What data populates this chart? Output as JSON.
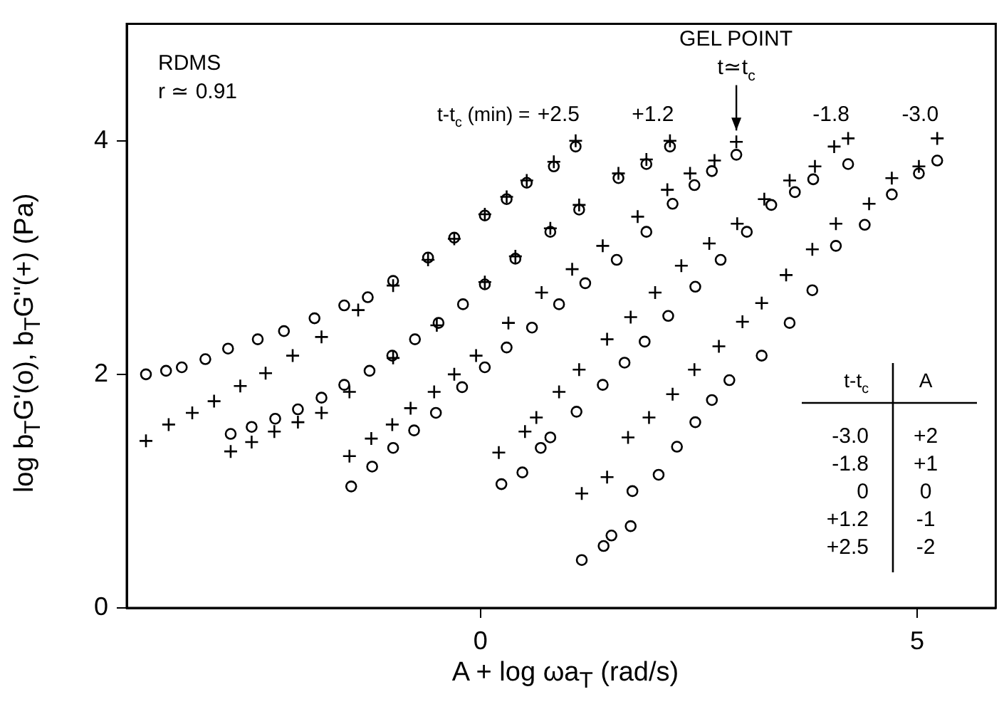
{
  "chart_data": {
    "type": "scatter",
    "xlabel": "A + log ωa$_{T}$ (rad/s)",
    "ylabel": "log b$_{T}$G'(o),  b$_{T}$G''(+)  (Pa)",
    "xlim": [
      -4.05,
      5.9
    ],
    "xticks": [
      0,
      5
    ],
    "ylim": [
      0,
      5
    ],
    "yticks": [
      0,
      2,
      4
    ],
    "grid": false,
    "legend": false,
    "annotations": [
      "RDMS",
      "r ≃ 0.91",
      "t-t$_{c}$ (min) =",
      {
        "text": "GEL POINT\nt≃t$_{c}$",
        "x": 2.93,
        "y": 3.99
      },
      "t-t$_{c}$",
      "A",
      "-3.0",
      "+2",
      "-1.8",
      "+1",
      "0",
      "0",
      "+1.2",
      "-1",
      "+2.5",
      "-2"
    ],
    "series": [
      {
        "name": "+2.5",
        "color": "#000000",
        "marker": "circle",
        "x": [
          -3.83,
          -3.6,
          -3.42,
          -3.15,
          -2.89,
          -2.55,
          -2.25,
          -1.9,
          -1.56,
          -1.29,
          -1.0,
          -0.6,
          -0.3,
          0.05,
          0.3,
          0.53,
          0.84,
          1.09
        ],
        "values": [
          2.0,
          2.03,
          2.06,
          2.13,
          2.22,
          2.3,
          2.37,
          2.48,
          2.59,
          2.66,
          2.8,
          3.0,
          3.17,
          3.36,
          3.5,
          3.64,
          3.78,
          3.95
        ]
      },
      {
        "color": "#000000",
        "marker": "cross",
        "x": [
          -3.83,
          -3.57,
          -3.3,
          -3.05,
          -2.75,
          -2.46,
          -2.15,
          -1.82,
          -1.4,
          -1.0,
          -0.6,
          -0.3,
          0.05,
          0.3,
          0.53,
          0.84,
          1.09
        ],
        "values": [
          1.43,
          1.57,
          1.67,
          1.77,
          1.9,
          2.01,
          2.16,
          2.32,
          2.55,
          2.76,
          2.98,
          3.16,
          3.37,
          3.52,
          3.66,
          3.82,
          4.0
        ]
      },
      {
        "name": "+1.2",
        "color": "#000000",
        "marker": "circle",
        "x": [
          -2.86,
          -2.62,
          -2.35,
          -2.09,
          -1.82,
          -1.56,
          -1.27,
          -1.01,
          -0.75,
          -0.48,
          -0.2,
          0.05,
          0.4,
          0.8,
          1.13,
          1.58,
          1.9,
          2.17
        ],
        "values": [
          1.49,
          1.55,
          1.62,
          1.7,
          1.8,
          1.91,
          2.03,
          2.16,
          2.3,
          2.44,
          2.6,
          2.77,
          2.99,
          3.22,
          3.41,
          3.68,
          3.8,
          3.95
        ]
      },
      {
        "color": "#000000",
        "marker": "cross",
        "x": [
          -2.86,
          -2.62,
          -2.36,
          -2.09,
          -1.82,
          -1.5,
          -1.0,
          -0.5,
          0.05,
          0.4,
          0.8,
          1.13,
          1.58,
          1.9,
          2.17
        ],
        "values": [
          1.34,
          1.42,
          1.51,
          1.59,
          1.67,
          1.85,
          2.14,
          2.42,
          2.79,
          3.01,
          3.25,
          3.45,
          3.72,
          3.84,
          4.0
        ]
      },
      {
        "color": "#000000",
        "marker": "circle",
        "x": [
          -1.48,
          -1.24,
          -1.0,
          -0.76,
          -0.51,
          -0.21,
          0.05,
          0.3,
          0.59,
          0.9,
          1.2,
          1.56,
          1.9,
          2.2,
          2.45,
          2.65,
          2.93
        ],
        "values": [
          1.04,
          1.21,
          1.37,
          1.52,
          1.67,
          1.89,
          2.06,
          2.23,
          2.4,
          2.6,
          2.78,
          2.98,
          3.22,
          3.46,
          3.62,
          3.74,
          3.88
        ]
      },
      {
        "color": "#000000",
        "marker": "cross",
        "x": [
          -1.5,
          -1.25,
          -1.01,
          -0.8,
          -0.53,
          -0.3,
          -0.05,
          0.32,
          0.7,
          1.05,
          1.4,
          1.8,
          2.14,
          2.4,
          2.68,
          2.93
        ],
        "values": [
          1.3,
          1.45,
          1.57,
          1.71,
          1.85,
          2.0,
          2.16,
          2.44,
          2.7,
          2.9,
          3.1,
          3.35,
          3.58,
          3.72,
          3.83,
          3.99
        ]
      },
      {
        "name": "-1.8",
        "color": "#000000",
        "marker": "circle",
        "x": [
          0.24,
          0.48,
          0.69,
          0.8,
          1.1,
          1.4,
          1.65,
          1.88,
          2.15,
          2.46,
          2.75,
          3.05,
          3.33,
          3.6,
          3.81,
          4.21
        ],
        "values": [
          1.06,
          1.16,
          1.37,
          1.46,
          1.68,
          1.91,
          2.1,
          2.28,
          2.5,
          2.75,
          2.98,
          3.22,
          3.45,
          3.56,
          3.67,
          3.8
        ]
      },
      {
        "color": "#000000",
        "marker": "cross",
        "x": [
          0.21,
          0.51,
          0.64,
          0.9,
          1.13,
          1.45,
          1.72,
          2.0,
          2.3,
          2.62,
          2.94,
          3.25,
          3.54,
          3.83,
          4.05,
          4.21
        ],
        "values": [
          1.33,
          1.51,
          1.63,
          1.85,
          2.04,
          2.3,
          2.49,
          2.7,
          2.93,
          3.12,
          3.29,
          3.5,
          3.66,
          3.78,
          3.95,
          4.02
        ]
      },
      {
        "name": "-3.0",
        "color": "#000000",
        "marker": "circle",
        "x": [
          1.16,
          1.41,
          1.5,
          1.72,
          1.74,
          2.04,
          2.25,
          2.46,
          2.65,
          2.85,
          3.22,
          3.54,
          3.8,
          4.07,
          4.4,
          4.71,
          5.02,
          5.23
        ],
        "values": [
          0.41,
          0.53,
          0.62,
          0.7,
          1.0,
          1.14,
          1.38,
          1.59,
          1.78,
          1.95,
          2.16,
          2.44,
          2.72,
          3.1,
          3.28,
          3.54,
          3.72,
          3.83
        ]
      },
      {
        "color": "#000000",
        "marker": "cross",
        "x": [
          1.16,
          1.45,
          1.69,
          1.93,
          2.2,
          2.45,
          2.73,
          3.0,
          3.22,
          3.5,
          3.8,
          4.07,
          4.45,
          4.71,
          5.02,
          5.23
        ],
        "values": [
          0.98,
          1.12,
          1.46,
          1.63,
          1.83,
          2.04,
          2.24,
          2.45,
          2.61,
          2.85,
          3.07,
          3.29,
          3.46,
          3.68,
          3.78,
          4.02
        ]
      }
    ]
  }
}
